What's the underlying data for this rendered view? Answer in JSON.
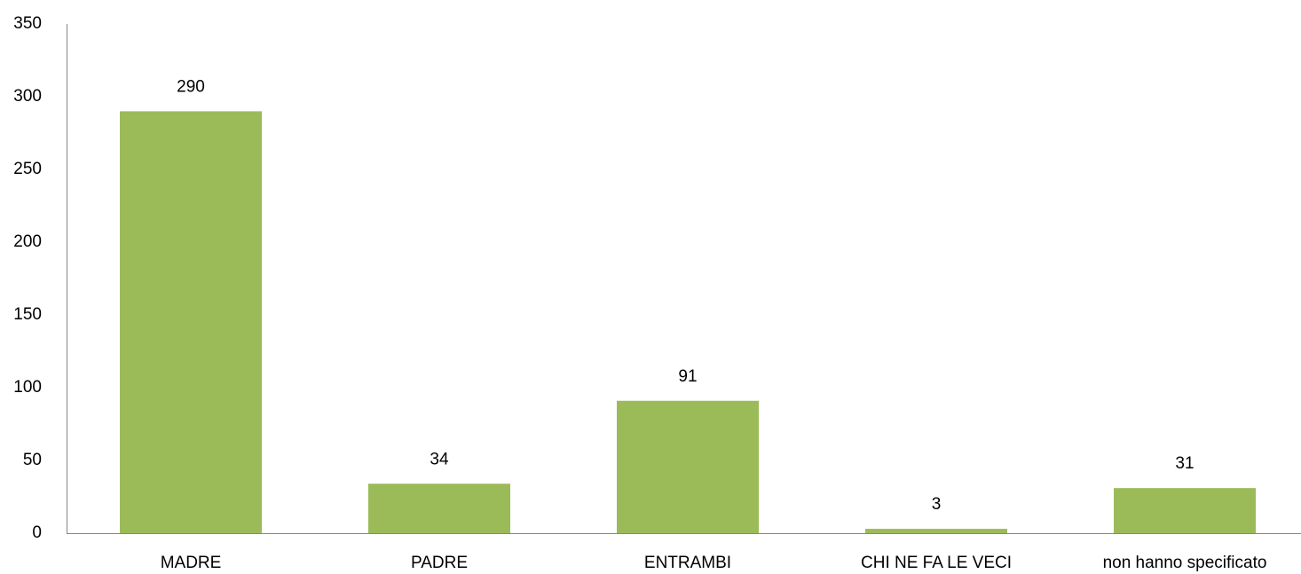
{
  "chart_data": {
    "type": "bar",
    "categories": [
      "MADRE",
      "PADRE",
      "ENTRAMBI",
      "CHI NE FA LE VECI",
      "non hanno specificato"
    ],
    "values": [
      290,
      34,
      91,
      3,
      31
    ],
    "color": "#9bbb59",
    "ylim": [
      0,
      350
    ],
    "yticks": [
      0,
      50,
      100,
      150,
      200,
      250,
      300,
      350
    ],
    "grid": false
  }
}
